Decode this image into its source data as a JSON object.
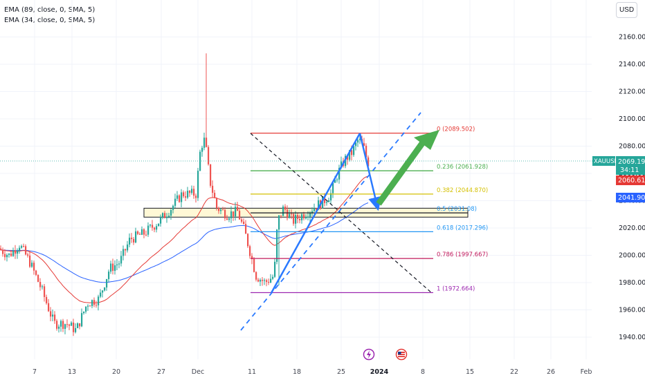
{
  "indicators": [
    "EMA (89, close, 0, SMA, 5)",
    "EMA (34, close, 0, SMA, 5)"
  ],
  "currency": "USD",
  "symbol": "XAUUSD",
  "last_price": "2069.195",
  "countdown": "34:11",
  "ema34_value": "2060.617",
  "ema89_value": "2041.905",
  "colors": {
    "up": "#26a69a",
    "down": "#ef5350",
    "ema34": "#e53935",
    "ema89": "#2962ff",
    "arrow_blue": "#2979ff",
    "arrow_green": "#4caf50",
    "zone": "#fff8d6"
  },
  "event_icons": [
    "lightning-icon",
    "us-flag-icon"
  ],
  "chart_data": {
    "type": "candlestick",
    "y_ticks": [
      1940,
      1960,
      1980,
      2000,
      2020,
      2040,
      2060,
      2080,
      2100,
      2120,
      2140,
      2160
    ],
    "ylim": [
      1925,
      2175
    ],
    "x_labels": [
      "7",
      "13",
      "20",
      "27",
      "Dec",
      "11",
      "18",
      "25",
      "2024",
      "8",
      "15",
      "22",
      "26",
      "Feb"
    ],
    "fib_levels": [
      {
        "label": "0 (2089.502)",
        "value": 2089.502,
        "color": "#e53935"
      },
      {
        "label": "0.236 (2061.928)",
        "value": 2061.928,
        "color": "#4caf50"
      },
      {
        "label": "0.382 (2044.870)",
        "value": 2044.87,
        "color": "#d4c000"
      },
      {
        "label": "0.5 (2031.08)",
        "value": 2031.08,
        "color": "#2196f3"
      },
      {
        "label": "0.618 (2017.296)",
        "value": 2017.296,
        "color": "#2196f3"
      },
      {
        "label": "0.786 (1997.667)",
        "value": 1997.667,
        "color": "#c2185b"
      },
      {
        "label": "1 (1972.664)",
        "value": 1972.664,
        "color": "#9c27b0"
      }
    ],
    "support_zone": [
      2031,
      2034
    ]
  }
}
